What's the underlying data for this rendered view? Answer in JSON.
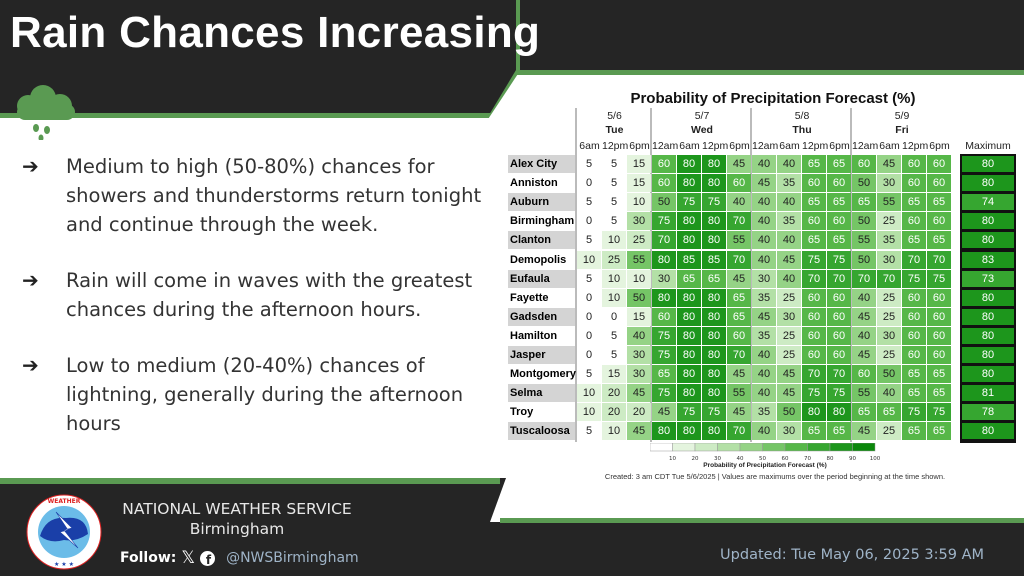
{
  "header": {
    "title": "Rain Chances Increasing"
  },
  "bullets": [
    "Medium to high (50-80%) chances for showers and thunderstorms return tonight and continue through the week.",
    "Rain will come in waves with the greatest chances during the afternoon hours.",
    "Low to medium (20-40%) chances of lightning, generally during the afternoon hours"
  ],
  "bullet_symbol": "➔",
  "chart_data": {
    "type": "table",
    "title": "Probability of Precipitation Forecast (%)",
    "days": [
      {
        "date": "5/6",
        "day": "Tue",
        "times": [
          "6am",
          "12pm",
          "6pm"
        ]
      },
      {
        "date": "5/7",
        "day": "Wed",
        "times": [
          "12am",
          "6am",
          "12pm",
          "6pm"
        ]
      },
      {
        "date": "5/8",
        "day": "Thu",
        "times": [
          "12am",
          "6am",
          "12pm",
          "6pm"
        ]
      },
      {
        "date": "5/9",
        "day": "Fri",
        "times": [
          "12am",
          "6am",
          "12pm",
          "6pm"
        ]
      }
    ],
    "max_label": "Maximum",
    "rows": [
      {
        "name": "Alex City",
        "values": [
          5,
          5,
          15,
          60,
          80,
          80,
          45,
          40,
          40,
          65,
          65,
          60,
          45,
          60,
          60
        ],
        "max": 80
      },
      {
        "name": "Anniston",
        "values": [
          0,
          5,
          15,
          60,
          80,
          80,
          60,
          45,
          35,
          60,
          60,
          50,
          30,
          60,
          60
        ],
        "max": 80
      },
      {
        "name": "Auburn",
        "values": [
          5,
          5,
          10,
          50,
          75,
          75,
          40,
          40,
          40,
          65,
          65,
          65,
          55,
          65,
          65
        ],
        "max": 74
      },
      {
        "name": "Birmingham",
        "values": [
          0,
          5,
          30,
          75,
          80,
          80,
          70,
          40,
          35,
          60,
          60,
          50,
          25,
          60,
          60
        ],
        "max": 80
      },
      {
        "name": "Clanton",
        "values": [
          5,
          10,
          25,
          70,
          80,
          80,
          55,
          40,
          40,
          65,
          65,
          55,
          35,
          65,
          65
        ],
        "max": 80
      },
      {
        "name": "Demopolis",
        "values": [
          10,
          25,
          55,
          80,
          85,
          85,
          70,
          40,
          45,
          75,
          75,
          50,
          30,
          70,
          70
        ],
        "max": 83
      },
      {
        "name": "Eufaula",
        "values": [
          5,
          10,
          10,
          30,
          65,
          65,
          45,
          30,
          40,
          70,
          70,
          70,
          70,
          75,
          75
        ],
        "max": 73
      },
      {
        "name": "Fayette",
        "values": [
          0,
          10,
          50,
          80,
          80,
          80,
          65,
          35,
          25,
          60,
          60,
          40,
          25,
          60,
          60
        ],
        "max": 80
      },
      {
        "name": "Gadsden",
        "values": [
          0,
          0,
          15,
          60,
          80,
          80,
          65,
          45,
          30,
          60,
          60,
          45,
          25,
          60,
          60
        ],
        "max": 80
      },
      {
        "name": "Hamilton",
        "values": [
          0,
          5,
          40,
          75,
          80,
          80,
          60,
          35,
          25,
          60,
          60,
          40,
          30,
          60,
          60
        ],
        "max": 80
      },
      {
        "name": "Jasper",
        "values": [
          0,
          5,
          30,
          75,
          80,
          80,
          70,
          40,
          25,
          60,
          60,
          45,
          25,
          60,
          60
        ],
        "max": 80
      },
      {
        "name": "Montgomery",
        "values": [
          5,
          15,
          30,
          65,
          80,
          80,
          45,
          40,
          45,
          70,
          70,
          60,
          50,
          65,
          65
        ],
        "max": 80
      },
      {
        "name": "Selma",
        "values": [
          10,
          20,
          45,
          75,
          80,
          80,
          55,
          40,
          45,
          75,
          75,
          55,
          40,
          65,
          65
        ],
        "max": 81
      },
      {
        "name": "Troy",
        "values": [
          10,
          20,
          20,
          45,
          75,
          75,
          45,
          35,
          50,
          80,
          80,
          65,
          65,
          75,
          75
        ],
        "max": 78
      },
      {
        "name": "Tuscaloosa",
        "values": [
          5,
          10,
          45,
          80,
          80,
          80,
          70,
          40,
          30,
          65,
          65,
          45,
          25,
          65,
          65
        ],
        "max": 80
      }
    ],
    "legend": {
      "ticks": [
        10,
        20,
        30,
        40,
        50,
        60,
        70,
        80,
        90,
        100
      ],
      "title": "Probability of Precipitation Forecast (%)",
      "colors": [
        "#ffffff",
        "#e4f4de",
        "#cdebc4",
        "#b3e0a6",
        "#95d386",
        "#75c566",
        "#56b748",
        "#36a630",
        "#1d961c",
        "#0b870b"
      ]
    },
    "note": "Created: 3 am CDT Tue 5/6/2025  |  Values are maximums over the period beginning at the time shown."
  },
  "footer": {
    "org": "NATIONAL WEATHER SERVICE",
    "office": "Birmingham",
    "follow": "Follow:",
    "handle": "@NWSBirmingham",
    "updated": "Updated: Tue May 06, 2025 3:59 AM",
    "logo_text": "NATIONAL WEATHER SERVICE"
  },
  "colors": {
    "dark": "#252525",
    "accent": "#5a9a52"
  }
}
